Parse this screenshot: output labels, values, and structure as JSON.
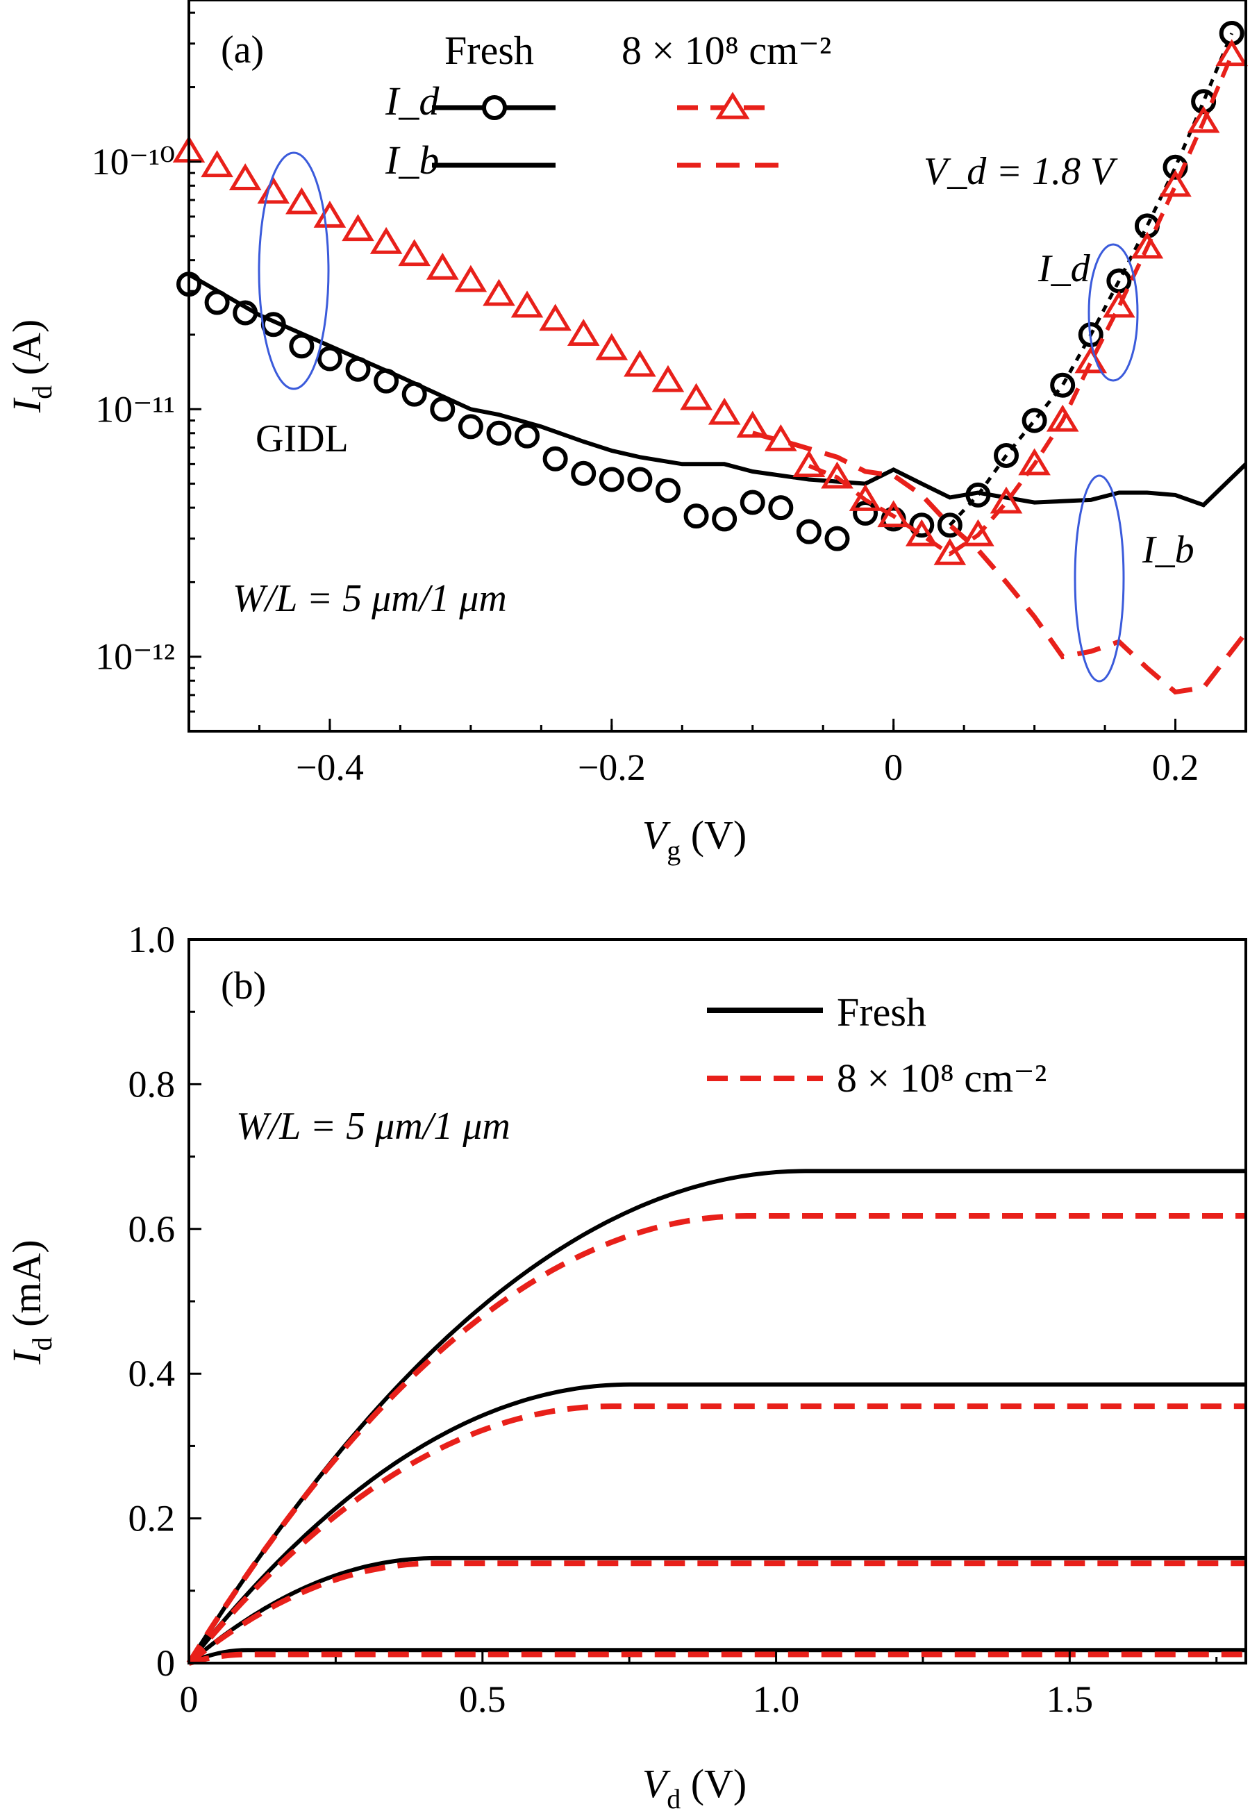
{
  "chart_data": [
    {
      "panel": "(a)",
      "type": "line",
      "yscale": "log",
      "xlabel": "V_g (V)",
      "ylabel": "I_d (A)",
      "xlim": [
        -0.5,
        0.25
      ],
      "ylim": [
        5e-13,
        4.5e-10
      ],
      "xticks": [
        -0.4,
        -0.2,
        0,
        0.2
      ],
      "xtick_labels": [
        "−0.4",
        "−0.2",
        "0",
        "0.2"
      ],
      "yticks": [
        1e-12,
        1e-11,
        1e-10
      ],
      "ytick_labels": [
        "10⁻¹²",
        "10⁻¹¹",
        "10⁻¹⁰"
      ],
      "grid": false,
      "legend_position": "top",
      "legend": {
        "header_fresh": "Fresh",
        "header_irr": "8 × 10⁸ cm⁻²",
        "row_id": "I_d",
        "row_ib": "I_b"
      },
      "annotations": {
        "vd": "V_d = 1.8 V",
        "gidl": "GIDL",
        "wl": "W/L = 5 μm/1 μm",
        "id_label": "I_d",
        "ib_label": "I_b"
      },
      "colors": {
        "fresh": "#000000",
        "irradiated": "#e8201a",
        "ellipse": "#3b5bdb"
      },
      "series": [
        {
          "legend_group": "Fresh",
          "quantity": "I_d",
          "style": "circles",
          "x": [
            -0.5,
            -0.48,
            -0.46,
            -0.44,
            -0.42,
            -0.4,
            -0.38,
            -0.36,
            -0.34,
            -0.32,
            -0.3,
            -0.28,
            -0.26,
            -0.24,
            -0.22,
            -0.2,
            -0.18,
            -0.16,
            -0.14,
            -0.12,
            -0.1,
            -0.08,
            -0.06,
            -0.04,
            -0.02,
            0.0,
            0.02,
            0.04,
            0.06,
            0.08,
            0.1,
            0.12,
            0.14,
            0.16,
            0.18,
            0.2,
            0.22,
            0.24
          ],
          "y": [
            3.2e-11,
            2.7e-11,
            2.45e-11,
            2.2e-11,
            1.8e-11,
            1.6e-11,
            1.45e-11,
            1.3e-11,
            1.15e-11,
            1e-11,
            8.5e-12,
            8e-12,
            7.8e-12,
            6.3e-12,
            5.5e-12,
            5.2e-12,
            5.2e-12,
            4.7e-12,
            3.7e-12,
            3.6e-12,
            4.2e-12,
            4e-12,
            3.2e-12,
            3e-12,
            3.8e-12,
            3.6e-12,
            3.4e-12,
            3.4e-12,
            4.5e-12,
            6.5e-12,
            9e-12,
            1.25e-11,
            2e-11,
            3.3e-11,
            5.5e-11,
            9.5e-11,
            1.75e-10,
            3.3e-10
          ]
        },
        {
          "legend_group": "Fresh",
          "quantity": "I_b",
          "style": "solid",
          "x": [
            -0.5,
            -0.45,
            -0.4,
            -0.35,
            -0.3,
            -0.28,
            -0.25,
            -0.22,
            -0.2,
            -0.18,
            -0.15,
            -0.12,
            -0.1,
            -0.06,
            -0.02,
            0.0,
            0.02,
            0.04,
            0.06,
            0.1,
            0.14,
            0.16,
            0.18,
            0.2,
            0.22,
            0.25
          ],
          "y": [
            3.5e-11,
            2.4e-11,
            1.8e-11,
            1.35e-11,
            1e-11,
            9.5e-12,
            8.5e-12,
            7.4e-12,
            6.8e-12,
            6.4e-12,
            6e-12,
            6e-12,
            5.6e-12,
            5.2e-12,
            5e-12,
            5.7e-12,
            5e-12,
            4.4e-12,
            4.6e-12,
            4.2e-12,
            4.3e-12,
            4.6e-12,
            4.6e-12,
            4.5e-12,
            4.1e-12,
            6e-12
          ]
        },
        {
          "legend_group": "8 × 10⁸ cm⁻²",
          "quantity": "I_d",
          "style": "triangles",
          "x": [
            -0.5,
            -0.48,
            -0.46,
            -0.44,
            -0.42,
            -0.4,
            -0.38,
            -0.36,
            -0.34,
            -0.32,
            -0.3,
            -0.28,
            -0.26,
            -0.24,
            -0.22,
            -0.2,
            -0.18,
            -0.16,
            -0.14,
            -0.12,
            -0.1,
            -0.08,
            -0.06,
            -0.04,
            -0.02,
            0.0,
            0.02,
            0.04,
            0.06,
            0.08,
            0.1,
            0.12,
            0.14,
            0.16,
            0.18,
            0.2,
            0.22,
            0.24
          ],
          "y": [
            1.1e-10,
            9.6e-11,
            8.5e-11,
            7.5e-11,
            6.8e-11,
            6e-11,
            5.3e-11,
            4.7e-11,
            4.2e-11,
            3.7e-11,
            3.3e-11,
            2.9e-11,
            2.6e-11,
            2.3e-11,
            2e-11,
            1.75e-11,
            1.5e-11,
            1.3e-11,
            1.1e-11,
            9.6e-12,
            8.5e-12,
            7.5e-12,
            5.9e-12,
            5.3e-12,
            4.3e-12,
            3.7e-12,
            3.1e-12,
            2.6e-12,
            3.1e-12,
            4.2e-12,
            6e-12,
            9e-12,
            1.55e-11,
            2.6e-11,
            4.5e-11,
            8e-11,
            1.45e-10,
            2.7e-10
          ]
        },
        {
          "legend_group": "8 × 10⁸ cm⁻²",
          "quantity": "I_b",
          "style": "dashed",
          "x": [
            -0.1,
            -0.07,
            -0.04,
            -0.02,
            0.0,
            0.02,
            0.04,
            0.06,
            0.08,
            0.1,
            0.12,
            0.14,
            0.16,
            0.18,
            0.2,
            0.22,
            0.25
          ],
          "y": [
            8e-12,
            7.2e-12,
            6.4e-12,
            5.6e-12,
            5.4e-12,
            4.5e-12,
            3.4e-12,
            2.7e-12,
            2e-12,
            1.45e-12,
            1e-12,
            1.05e-12,
            1.15e-12,
            9e-13,
            7.2e-13,
            7.5e-13,
            1.25e-12
          ]
        }
      ]
    },
    {
      "panel": "(b)",
      "type": "line",
      "yscale": "linear",
      "xlabel": "V_d (V)",
      "ylabel": "I_d (mA)",
      "xlim": [
        0,
        1.8
      ],
      "ylim": [
        0,
        1.0
      ],
      "xticks": [
        0,
        0.5,
        1.0,
        1.5
      ],
      "xtick_labels": [
        "0",
        "0.5",
        "1.0",
        "1.5"
      ],
      "yticks": [
        0,
        0.2,
        0.4,
        0.6,
        0.8,
        1.0
      ],
      "ytick_labels": [
        "0",
        "0.2",
        "0.4",
        "0.6",
        "0.8",
        "1.0"
      ],
      "grid": false,
      "legend_position": "top-right",
      "legend": [
        "Fresh",
        "8 × 10⁸ cm⁻²"
      ],
      "annotations": {
        "wl": "W/L = 5 μm/1 μm"
      },
      "colors": {
        "fresh": "#000000",
        "irradiated": "#e8201a"
      },
      "series": [
        {
          "name": "Fresh",
          "curves": [
            {
              "isat": 0.68,
              "vsat": 1.05
            },
            {
              "isat": 0.385,
              "vsat": 0.75
            },
            {
              "isat": 0.145,
              "vsat": 0.42
            },
            {
              "isat": 0.018,
              "vsat": 0.1
            }
          ]
        },
        {
          "name": "8 × 10⁸ cm⁻²",
          "curves": [
            {
              "isat": 0.618,
              "vsat": 0.95
            },
            {
              "isat": 0.355,
              "vsat": 0.72
            },
            {
              "isat": 0.138,
              "vsat": 0.42
            },
            {
              "isat": 0.012,
              "vsat": 0.1
            }
          ]
        }
      ]
    }
  ]
}
